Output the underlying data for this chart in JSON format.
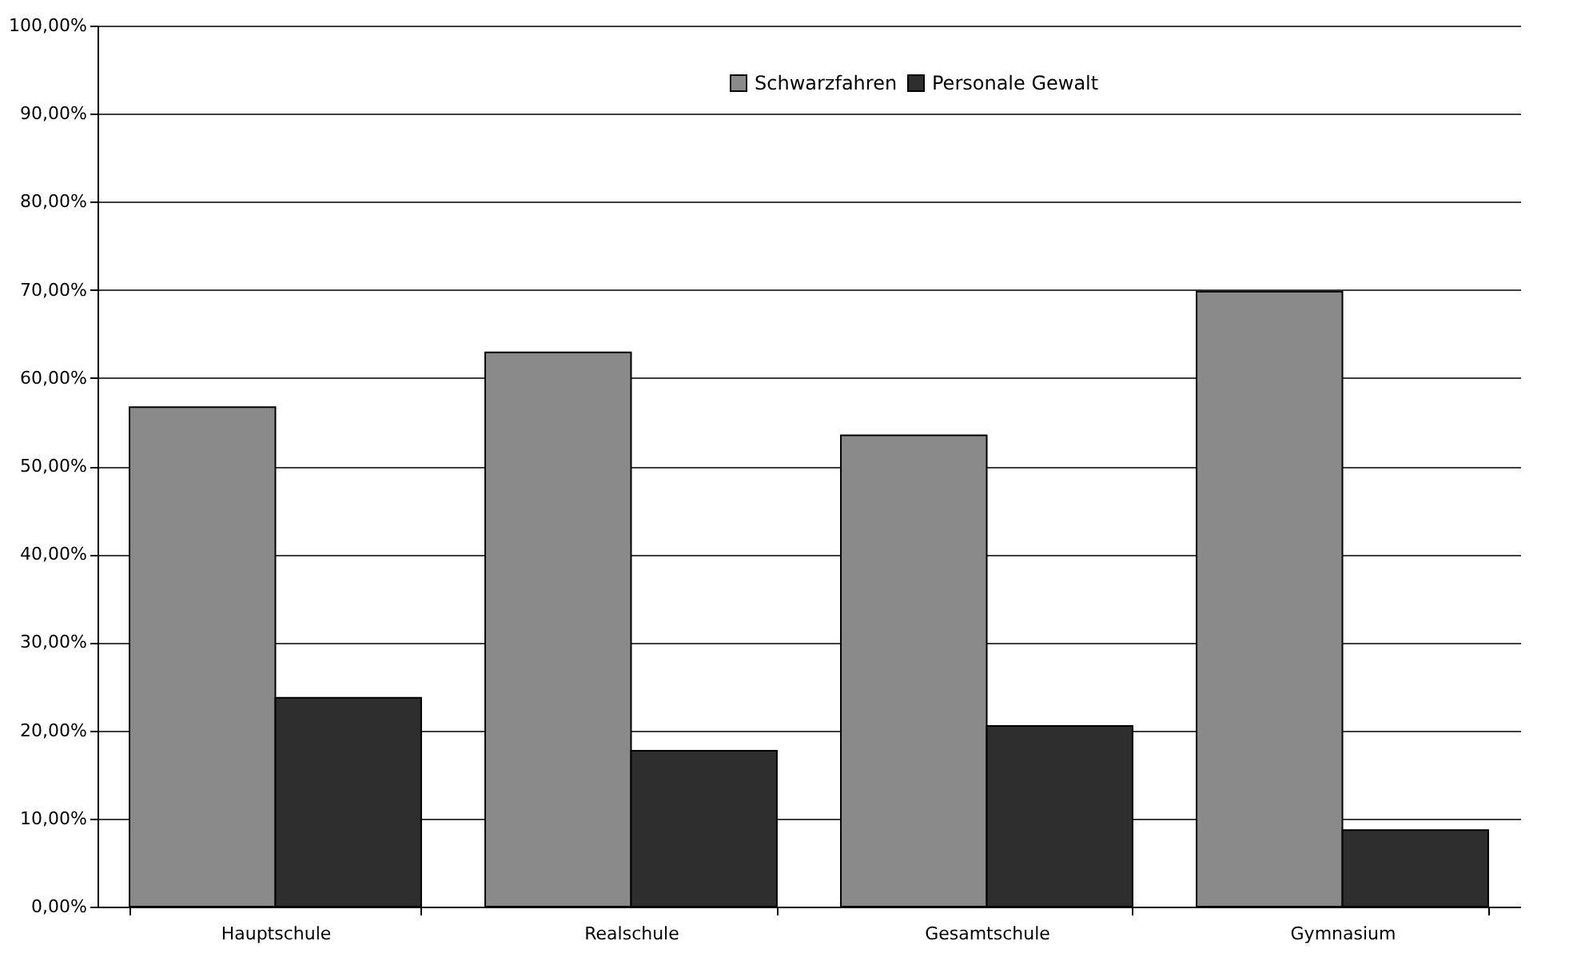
{
  "chart_data": {
    "type": "bar",
    "categories": [
      "Hauptschule",
      "Realschule",
      "Gesamtschule",
      "Gymnasium"
    ],
    "series": [
      {
        "name": "Schwarzfahren",
        "color": "#8a8a8a",
        "values": [
          56.7,
          62.9,
          53.5,
          69.8
        ]
      },
      {
        "name": "Personale Gewalt",
        "color": "#2e2e2e",
        "values": [
          23.7,
          17.7,
          20.5,
          8.7
        ]
      }
    ],
    "ylim": [
      0,
      100
    ],
    "yticks": [
      {
        "value": 0,
        "label": "0,00%"
      },
      {
        "value": 10,
        "label": "10,00%"
      },
      {
        "value": 20,
        "label": "20,00%"
      },
      {
        "value": 30,
        "label": "30,00%"
      },
      {
        "value": 40,
        "label": "40,00%"
      },
      {
        "value": 50,
        "label": "50,00%"
      },
      {
        "value": 60,
        "label": "60,00%"
      },
      {
        "value": 70,
        "label": "70,00%"
      },
      {
        "value": 80,
        "label": "80,00%"
      },
      {
        "value": 90,
        "label": "90,00%"
      },
      {
        "value": 100,
        "label": "100,00%"
      }
    ],
    "grid": "y",
    "legend": "top"
  }
}
